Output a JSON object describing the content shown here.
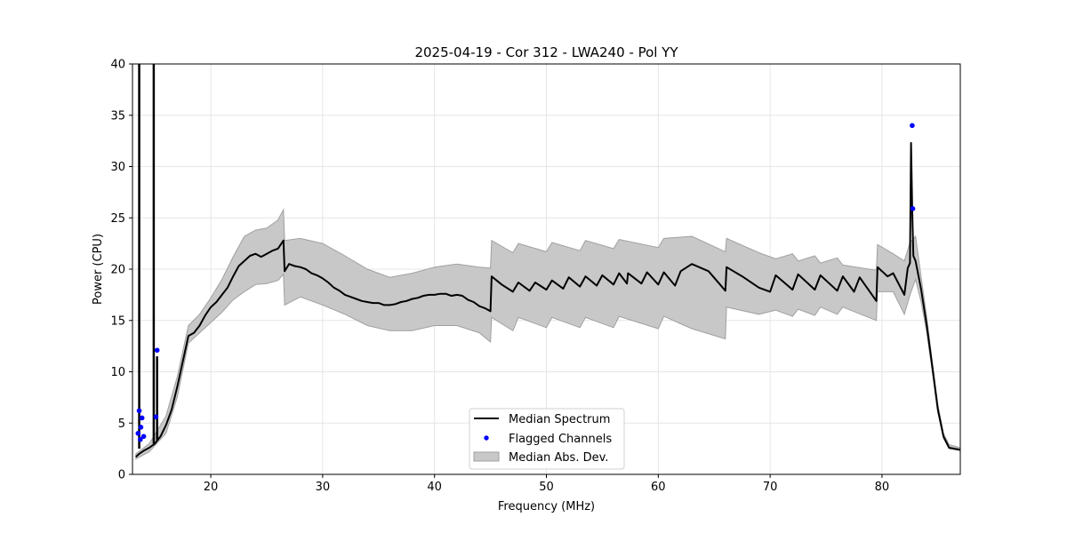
{
  "chart_data": {
    "type": "line",
    "title": "2025-04-19 - Cor 312 - LWA240 - Pol YY",
    "xlabel": "Frequency (MHz)",
    "ylabel": "Power (CPU)",
    "xlim": [
      13,
      87
    ],
    "ylim": [
      0,
      40
    ],
    "xticks": [
      20,
      30,
      40,
      50,
      60,
      70,
      80
    ],
    "yticks": [
      0,
      5,
      10,
      15,
      20,
      25,
      30,
      35,
      40
    ],
    "grid": true,
    "legend_position": "bottom-center",
    "colors": {
      "median": "#000000",
      "flagged": "#0000ff",
      "mad_fill": "#c8c8c8",
      "mad_edge": "#a0a0a0"
    },
    "series": [
      {
        "name": "Median Spectrum",
        "kind": "line",
        "x": [
          13.3,
          13.6,
          14.0,
          14.5,
          15.0,
          15.5,
          16.0,
          16.5,
          17.0,
          17.5,
          18.0,
          18.5,
          19.0,
          19.5,
          20.0,
          20.5,
          21.0,
          21.5,
          22.0,
          22.5,
          23.0,
          23.5,
          24.0,
          24.5,
          25.0,
          25.5,
          26.0,
          26.5,
          26.6,
          27.0,
          27.5,
          28.0,
          28.5,
          29.0,
          29.5,
          30.0,
          30.5,
          31.0,
          31.5,
          32.0,
          32.5,
          33.0,
          33.5,
          34.0,
          34.5,
          35.0,
          35.5,
          36.0,
          36.5,
          37.0,
          37.5,
          38.0,
          38.5,
          39.0,
          39.5,
          40.0,
          40.5,
          41.0,
          41.5,
          42.0,
          42.5,
          43.0,
          43.5,
          44.0,
          44.5,
          45.0,
          45.1,
          46.0,
          47.0,
          47.5,
          48.5,
          49.0,
          50.0,
          50.5,
          51.5,
          52.0,
          53.0,
          53.5,
          54.5,
          55.0,
          56.0,
          56.5,
          57.2,
          57.3,
          58.5,
          59.0,
          60.0,
          60.5,
          61.5,
          62.0,
          63.0,
          64.5,
          66.0,
          66.1,
          67.5,
          69.0,
          70.0,
          70.5,
          72.0,
          72.5,
          74.0,
          74.5,
          76.0,
          76.5,
          77.5,
          78.0,
          79.5,
          79.6,
          80.5,
          81.0,
          82.0,
          82.3,
          82.5,
          82.6,
          82.7,
          82.8,
          83.0,
          83.5,
          84.0,
          84.5,
          85.0,
          85.5,
          86.0,
          87.0
        ],
        "y": [
          1.7,
          2.0,
          2.3,
          2.6,
          3.0,
          3.7,
          4.8,
          6.3,
          8.5,
          11.0,
          13.5,
          13.8,
          14.5,
          15.5,
          16.3,
          16.8,
          17.5,
          18.2,
          19.3,
          20.3,
          20.8,
          21.3,
          21.5,
          21.2,
          21.5,
          21.8,
          22.0,
          22.8,
          19.8,
          20.5,
          20.3,
          20.2,
          20.0,
          19.6,
          19.4,
          19.1,
          18.7,
          18.2,
          17.9,
          17.5,
          17.3,
          17.1,
          16.9,
          16.8,
          16.7,
          16.7,
          16.5,
          16.5,
          16.6,
          16.8,
          16.9,
          17.1,
          17.2,
          17.4,
          17.5,
          17.5,
          17.6,
          17.6,
          17.4,
          17.5,
          17.4,
          17.0,
          16.8,
          16.4,
          16.2,
          15.9,
          19.3,
          18.5,
          17.8,
          18.7,
          17.9,
          18.7,
          18.0,
          18.9,
          18.1,
          19.2,
          18.3,
          19.3,
          18.4,
          19.4,
          18.5,
          19.6,
          18.6,
          19.6,
          18.6,
          19.7,
          18.5,
          19.7,
          18.4,
          19.8,
          20.5,
          19.8,
          17.9,
          20.2,
          19.3,
          18.2,
          17.8,
          19.4,
          18.0,
          19.5,
          18.0,
          19.4,
          17.9,
          19.3,
          17.8,
          19.2,
          16.9,
          20.2,
          19.3,
          19.6,
          17.5,
          20.1,
          20.6,
          32.3,
          25.9,
          21.3,
          20.8,
          18.0,
          14.5,
          10.5,
          6.3,
          3.7,
          2.6,
          2.4
        ],
        "spikes": [
          {
            "x": 13.6,
            "from": 2.5,
            "to": 40
          },
          {
            "x": 14.9,
            "from": 3.0,
            "to": 40
          },
          {
            "x": 15.2,
            "from": 3.3,
            "to": 11.5
          }
        ]
      },
      {
        "name": "Median Abs. Dev.",
        "kind": "band",
        "x": [
          13.3,
          14.5,
          16.0,
          17.0,
          18.0,
          19.0,
          20.0,
          21.0,
          22.0,
          23.0,
          24.0,
          25.0,
          26.0,
          26.5,
          26.6,
          28.0,
          30.0,
          32.0,
          34.0,
          36.0,
          38.0,
          40.0,
          42.0,
          44.0,
          45.0,
          45.1,
          47.0,
          47.5,
          50.0,
          50.5,
          53.0,
          53.5,
          56.0,
          56.5,
          60.0,
          60.5,
          63.0,
          66.0,
          66.1,
          69.0,
          70.5,
          72.0,
          72.5,
          74.0,
          74.5,
          76.0,
          76.5,
          79.5,
          79.6,
          81.0,
          82.0,
          82.5,
          83.0,
          83.5,
          84.0,
          84.5,
          85.0,
          85.5,
          86.0,
          87.0
        ],
        "lower": [
          1.5,
          2.2,
          4.0,
          7.5,
          12.8,
          13.8,
          14.8,
          15.8,
          17.0,
          17.8,
          18.5,
          18.6,
          18.9,
          19.5,
          16.5,
          17.3,
          16.5,
          15.6,
          14.5,
          14.0,
          14.0,
          14.5,
          14.5,
          13.8,
          12.9,
          15.3,
          14.0,
          15.3,
          14.3,
          15.3,
          14.3,
          15.3,
          14.3,
          15.4,
          14.2,
          15.4,
          14.2,
          13.2,
          16.3,
          15.6,
          16.0,
          15.4,
          16.1,
          15.5,
          16.3,
          15.6,
          16.3,
          15.0,
          17.8,
          17.8,
          15.6,
          17.5,
          19.0,
          16.8,
          13.8,
          10.0,
          6.0,
          3.5,
          2.5,
          2.3
        ],
        "upper": [
          2.0,
          3.0,
          5.7,
          9.5,
          14.5,
          15.6,
          17.2,
          19.0,
          21.2,
          23.2,
          23.8,
          24.0,
          24.8,
          25.8,
          22.8,
          23.0,
          22.5,
          21.3,
          20.0,
          19.2,
          19.6,
          20.2,
          20.5,
          20.2,
          20.1,
          22.8,
          21.6,
          22.5,
          21.7,
          22.6,
          21.8,
          22.8,
          22.0,
          22.9,
          22.1,
          23.0,
          23.2,
          21.7,
          23.0,
          21.6,
          21.0,
          21.5,
          20.8,
          21.3,
          20.6,
          21.1,
          20.4,
          19.9,
          22.4,
          21.5,
          20.8,
          22.6,
          23.2,
          19.2,
          15.3,
          11.0,
          6.8,
          4.0,
          2.9,
          2.6
        ]
      },
      {
        "name": "Flagged Channels",
        "kind": "scatter",
        "x": [
          13.5,
          13.6,
          13.7,
          13.75,
          13.85,
          14.0,
          15.1,
          15.2,
          82.7,
          82.75
        ],
        "y": [
          4.0,
          6.2,
          3.4,
          4.6,
          5.5,
          3.7,
          5.6,
          12.1,
          34.0,
          25.9
        ]
      }
    ]
  }
}
